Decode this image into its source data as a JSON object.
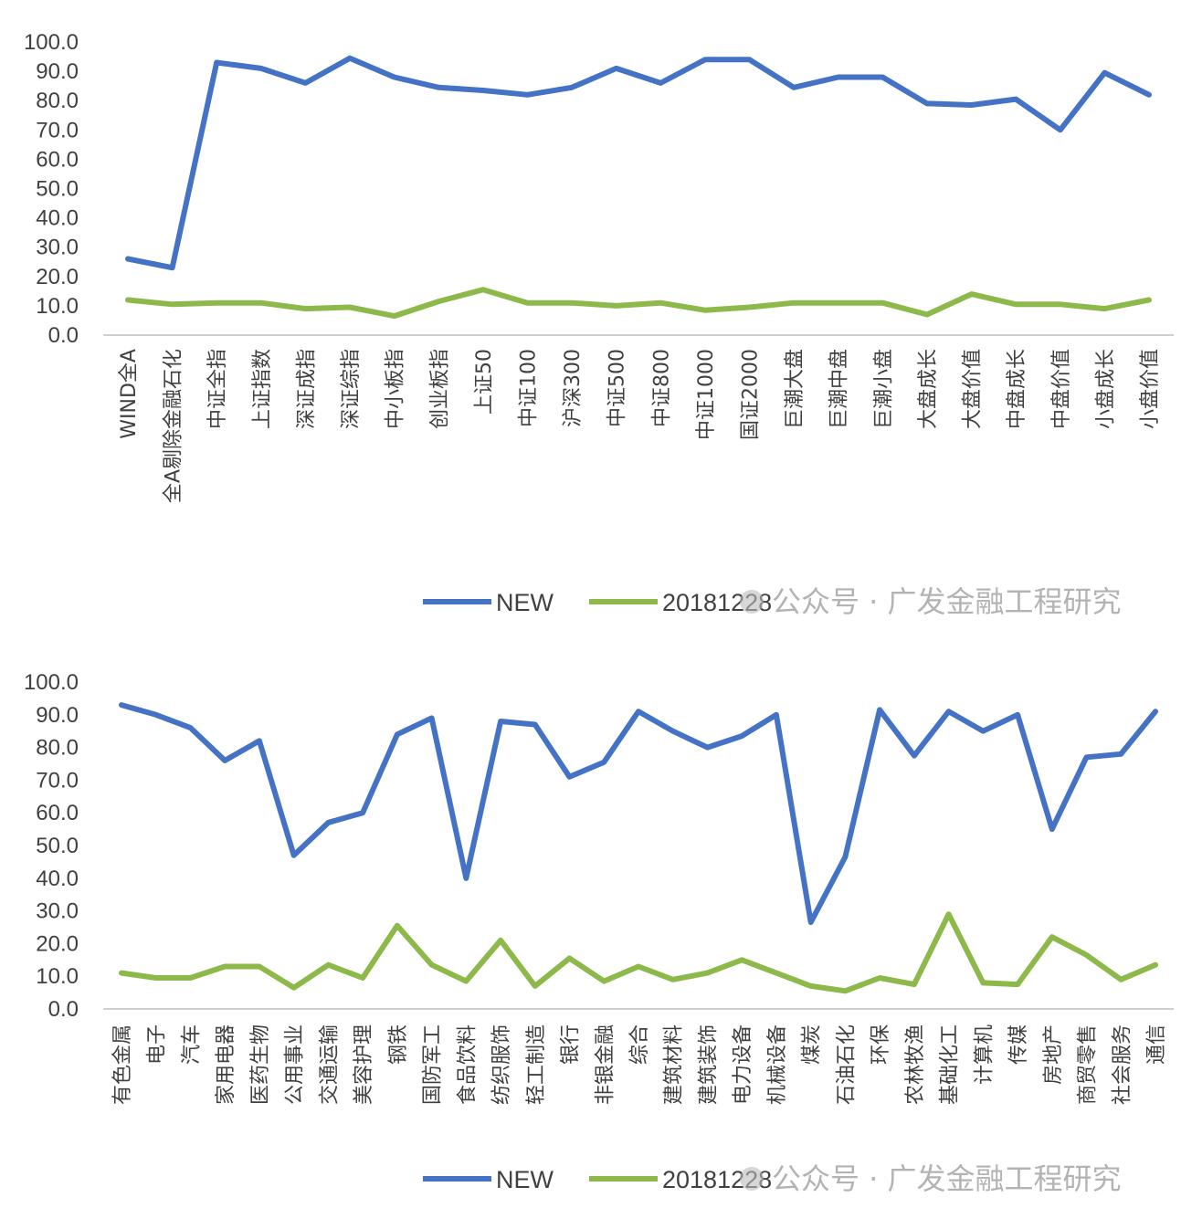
{
  "watermark": "公众号 · 广发金融工程研究",
  "colors": {
    "new": "#4472C4",
    "old": "#8DB84A",
    "axis": "#bfbfbf",
    "text": "#404040"
  },
  "chart_data": [
    {
      "type": "line",
      "ylim": [
        0,
        100
      ],
      "yticks": [
        "0.0",
        "10.0",
        "20.0",
        "30.0",
        "40.0",
        "50.0",
        "60.0",
        "70.0",
        "80.0",
        "90.0",
        "100.0"
      ],
      "grid": false,
      "legend_position": "bottom-right",
      "categories": [
        "WIND全A",
        "全A剔除金融石化",
        "中证全指",
        "上证指数",
        "深证成指",
        "深证综指",
        "中小板指",
        "创业板指",
        "上证50",
        "中证100",
        "沪深300",
        "中证500",
        "中证800",
        "中证1000",
        "国证2000",
        "巨潮大盘",
        "巨潮中盘",
        "巨潮小盘",
        "大盘成长",
        "大盘价值",
        "中盘成长",
        "中盘价值",
        "小盘成长",
        "小盘价值"
      ],
      "series": [
        {
          "name": "NEW",
          "values": [
            26,
            23,
            93,
            91,
            86,
            94.5,
            88,
            84.5,
            83.5,
            82,
            84.5,
            91,
            86,
            94,
            94,
            84.5,
            88,
            88,
            79,
            78.5,
            80.5,
            70,
            89.5,
            82
          ]
        },
        {
          "name": "20181228",
          "values": [
            12,
            10.5,
            11,
            11,
            9,
            9.5,
            6.5,
            11.5,
            15.5,
            11,
            11,
            10,
            11,
            8.5,
            9.5,
            11,
            11,
            11,
            7,
            14,
            10.5,
            10.5,
            9,
            12
          ]
        }
      ]
    },
    {
      "type": "line",
      "ylim": [
        0,
        100
      ],
      "yticks": [
        "0.0",
        "10.0",
        "20.0",
        "30.0",
        "40.0",
        "50.0",
        "60.0",
        "70.0",
        "80.0",
        "90.0",
        "100.0"
      ],
      "grid": false,
      "legend_position": "bottom-right",
      "categories": [
        "有色金属",
        "电子",
        "汽车",
        "家用电器",
        "医药生物",
        "公用事业",
        "交通运输",
        "美容护理",
        "钢铁",
        "国防军工",
        "食品饮料",
        "纺织服饰",
        "轻工制造",
        "银行",
        "非银金融",
        "综合",
        "建筑材料",
        "建筑装饰",
        "电力设备",
        "机械设备",
        "煤炭",
        "石油石化",
        "环保",
        "农林牧渔",
        "基础化工",
        "计算机",
        "传媒",
        "房地产",
        "商贸零售",
        "社会服务",
        "通信"
      ],
      "series": [
        {
          "name": "NEW",
          "values": [
            93,
            90,
            86,
            76,
            82,
            47,
            57,
            60,
            84,
            89,
            40,
            88,
            87,
            71,
            75.5,
            91,
            85,
            80,
            83.5,
            90,
            26.5,
            46.5,
            91.5,
            77.5,
            91,
            85,
            90,
            55,
            77,
            78,
            91
          ]
        },
        {
          "name": "20181228",
          "values": [
            11,
            9.5,
            9.5,
            13,
            13,
            6.5,
            13.5,
            9.5,
            25.5,
            13.5,
            8.5,
            21,
            7,
            15.5,
            8.5,
            13,
            9,
            11,
            15,
            11,
            7,
            5.5,
            9.5,
            7.5,
            29,
            8,
            7.5,
            22,
            16.5,
            9,
            13.5
          ]
        }
      ]
    }
  ]
}
